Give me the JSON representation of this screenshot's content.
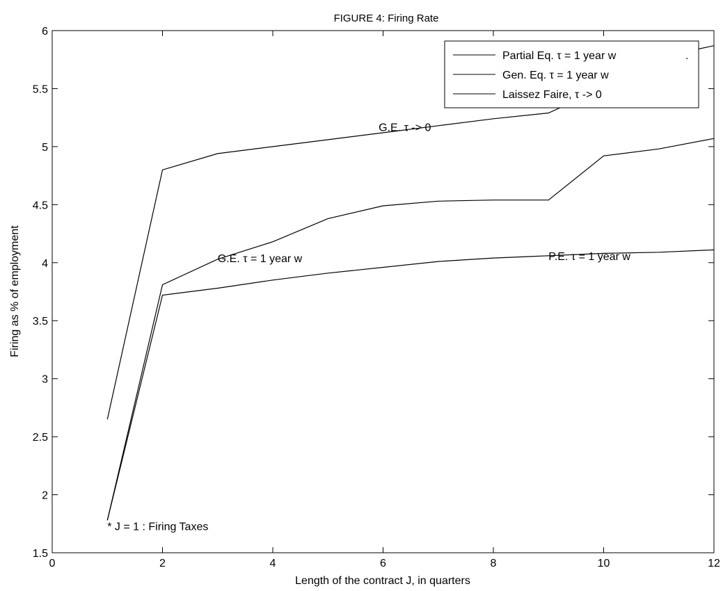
{
  "chart_data": {
    "type": "line",
    "title": "FIGURE 4: Firing Rate",
    "xlabel": "Length of the contract J, in quarters",
    "ylabel": "Firing as % of employment",
    "xlim": [
      0,
      12
    ],
    "ylim": [
      1.5,
      6
    ],
    "xticks": [
      0,
      2,
      4,
      6,
      8,
      10,
      12
    ],
    "yticks": [
      1.5,
      2,
      2.5,
      3,
      3.5,
      4,
      4.5,
      5,
      5.5,
      6
    ],
    "xtick_labels": [
      "0",
      "2",
      "4",
      "6",
      "8",
      "10",
      "12"
    ],
    "ytick_labels": [
      "1.5",
      "2",
      "2.5",
      "3",
      "3.5",
      "4",
      "4.5",
      "5",
      "5.5",
      "6"
    ],
    "grid": false,
    "legend_position": "top-right",
    "series": [
      {
        "name": "Partial Eq. τ = 1 year w",
        "color": "#000000",
        "x": [
          1,
          2,
          3,
          4,
          5,
          6,
          7,
          8,
          9,
          10,
          11,
          12
        ],
        "values": [
          1.78,
          3.72,
          3.78,
          3.85,
          3.91,
          3.96,
          4.01,
          4.04,
          4.06,
          4.08,
          4.09,
          4.11
        ]
      },
      {
        "name": "Gen. Eq. τ = 1 year w",
        "color": "#000000",
        "x": [
          1,
          2,
          3,
          4,
          5,
          6,
          7,
          8,
          9,
          10,
          11,
          12
        ],
        "values": [
          1.78,
          3.81,
          4.03,
          4.18,
          4.38,
          4.49,
          4.53,
          4.54,
          4.54,
          4.92,
          4.98,
          5.07
        ]
      },
      {
        "name": "Laissez Faire,  τ -> 0",
        "color": "#000000",
        "x": [
          1,
          2,
          3,
          4,
          5,
          6,
          7,
          8,
          9,
          10,
          11,
          12
        ],
        "values": [
          2.65,
          4.8,
          4.94,
          5.0,
          5.06,
          5.12,
          5.18,
          5.24,
          5.29,
          5.51,
          5.77,
          5.87
        ]
      }
    ],
    "legend_extra_mark": ".",
    "annotations": [
      {
        "text": "G.E. τ -> 0",
        "x": 5.92,
        "y": 5.17
      },
      {
        "text": "G.E. τ = 1 year w",
        "x": 3.0,
        "y": 4.04
      },
      {
        "text": "P.E. τ = 1 year w",
        "x": 9.0,
        "y": 4.06
      },
      {
        "text": "* J = 1 : Firing Taxes",
        "x": 1.0,
        "y": 1.73
      }
    ]
  }
}
